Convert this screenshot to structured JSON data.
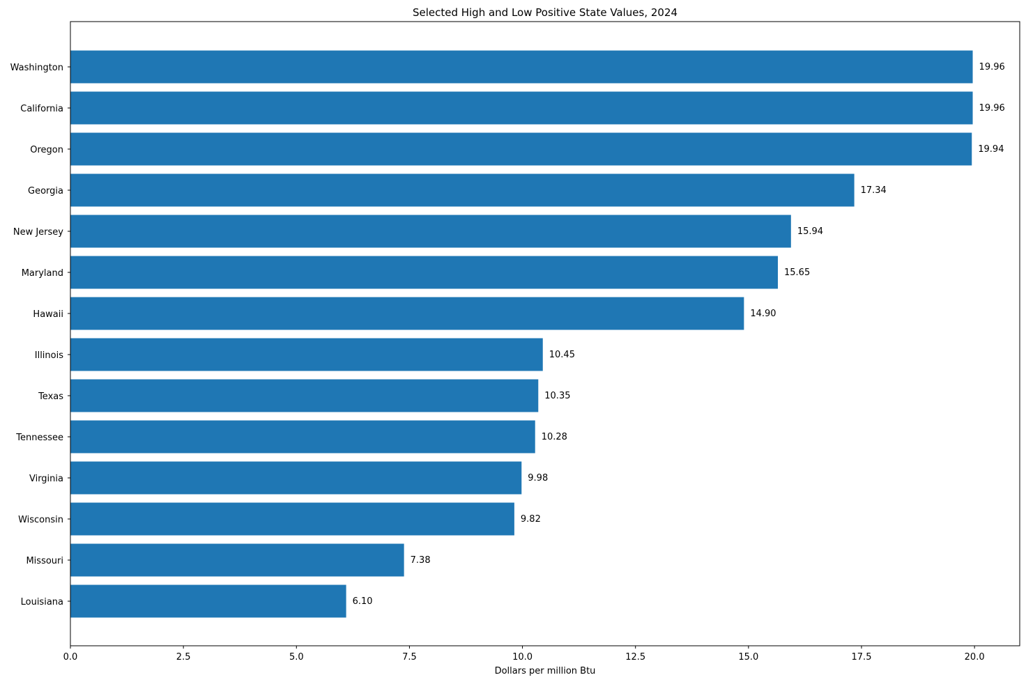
{
  "chart_data": {
    "type": "bar",
    "orientation": "horizontal",
    "title": "Selected High and Low Positive State Values, 2024",
    "xlabel": "Dollars per million Btu",
    "ylabel": "",
    "xlim": [
      0,
      21
    ],
    "xticks": [
      0.0,
      2.5,
      5.0,
      7.5,
      10.0,
      12.5,
      15.0,
      17.5,
      20.0
    ],
    "xtick_labels": [
      "0.0",
      "2.5",
      "5.0",
      "7.5",
      "10.0",
      "12.5",
      "15.0",
      "17.5",
      "20.0"
    ],
    "grid": false,
    "legend": "none",
    "bar_color": "#1f77b4",
    "categories": [
      "Washington",
      "California",
      "Oregon",
      "Georgia",
      "New Jersey",
      "Maryland",
      "Hawaii",
      "Illinois",
      "Texas",
      "Tennessee",
      "Virginia",
      "Wisconsin",
      "Missouri",
      "Louisiana"
    ],
    "values": [
      19.96,
      19.96,
      19.94,
      17.34,
      15.94,
      15.65,
      14.9,
      10.45,
      10.35,
      10.28,
      9.98,
      9.82,
      7.38,
      6.1
    ],
    "value_labels": [
      "19.96",
      "19.96",
      "19.94",
      "17.34",
      "15.94",
      "15.65",
      "14.90",
      "10.45",
      "10.35",
      "10.28",
      "9.98",
      "9.82",
      "7.38",
      "6.10"
    ]
  }
}
